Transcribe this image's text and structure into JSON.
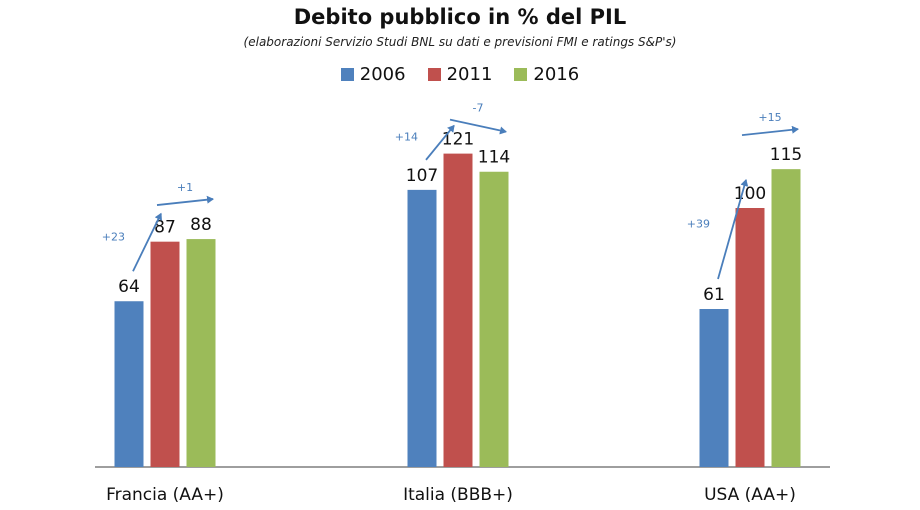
{
  "chart_data": {
    "type": "bar",
    "title": "Debito pubblico in % del PIL",
    "subtitle": "(elaborazioni Servizio Studi BNL su dati e previsioni FMI e  ratings S&P's)",
    "categories": [
      "Francia (AA+)",
      "Italia (BBB+)",
      "USA (AA+)"
    ],
    "series": [
      {
        "name": "2006",
        "color": "#4f81bd",
        "values": [
          64,
          107,
          61
        ]
      },
      {
        "name": "2011",
        "color": "#c0504d",
        "values": [
          87,
          121,
          100
        ]
      },
      {
        "name": "2016",
        "color": "#9bbb59",
        "values": [
          88,
          114,
          115
        ]
      }
    ],
    "annotations": [
      {
        "category": "Francia (AA+)",
        "from_series": "2006",
        "to_series": "2011",
        "label": "+23"
      },
      {
        "category": "Francia (AA+)",
        "from_series": "2011",
        "to_series": "2016",
        "label": "+1"
      },
      {
        "category": "Italia (BBB+)",
        "from_series": "2006",
        "to_series": "2011",
        "label": "+14"
      },
      {
        "category": "Italia (BBB+)",
        "from_series": "2011",
        "to_series": "2016",
        "label": "-7"
      },
      {
        "category": "USA (AA+)",
        "from_series": "2006",
        "to_series": "2011",
        "label": "+39"
      },
      {
        "category": "USA (AA+)",
        "from_series": "2011",
        "to_series": "2016",
        "label": "+15"
      }
    ],
    "ylim": [
      0,
      140
    ],
    "legend_position": "top-center",
    "grid": false
  }
}
